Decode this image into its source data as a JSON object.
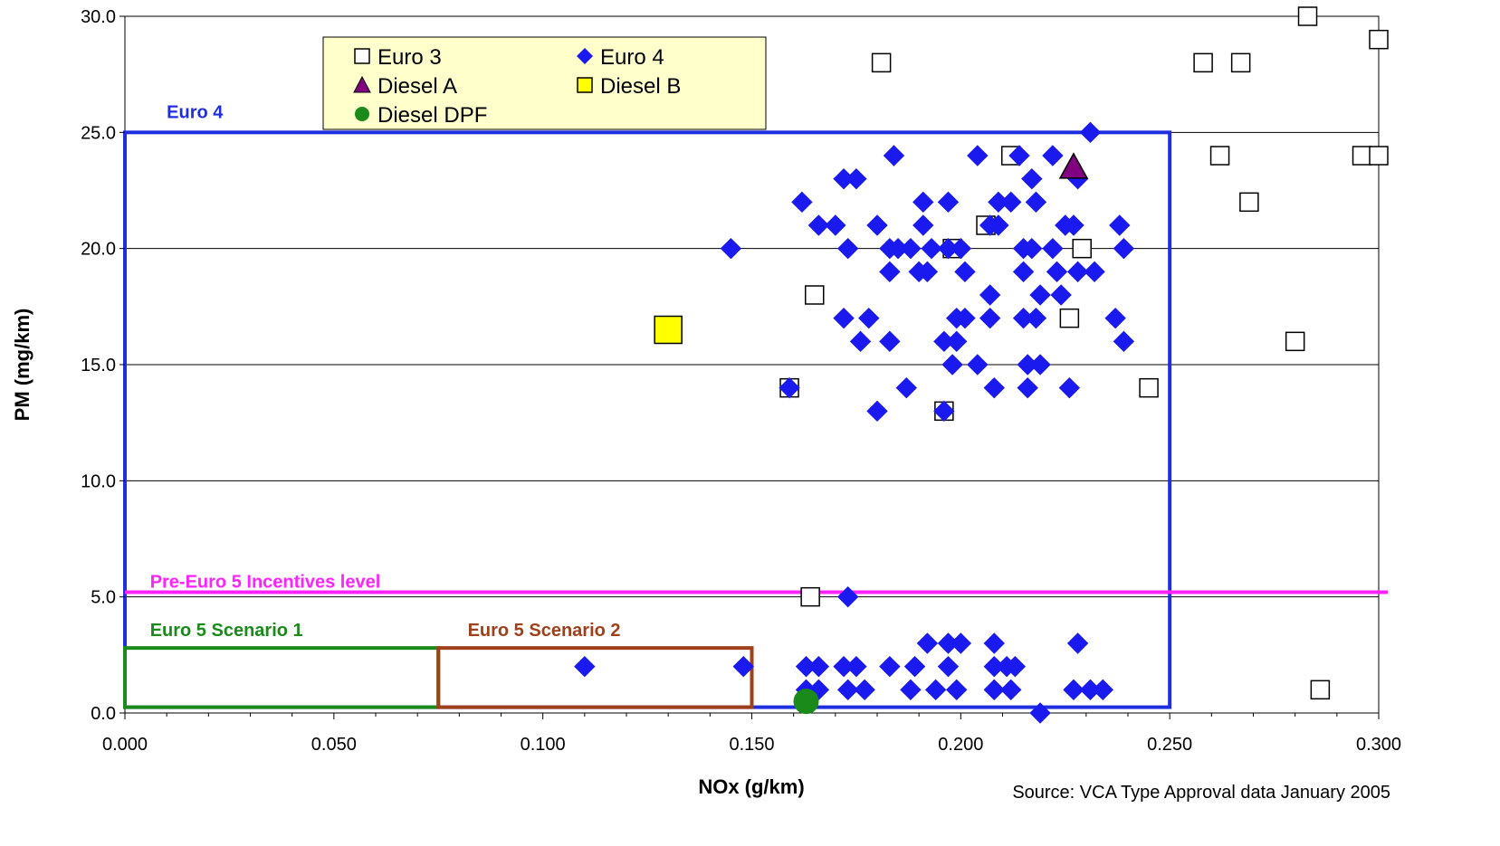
{
  "chart_data": {
    "type": "scatter",
    "xlabel": "NOx (g/km)",
    "ylabel": "PM (mg/km)",
    "xlim": [
      0,
      0.3
    ],
    "ylim": [
      0,
      30
    ],
    "x_ticks": [
      "0.000",
      "0.050",
      "0.100",
      "0.150",
      "0.200",
      "0.250",
      "0.300"
    ],
    "y_ticks": [
      "0.0",
      "5.0",
      "10.0",
      "15.0",
      "20.0",
      "25.0",
      "30.0"
    ],
    "grid": "horizontal",
    "legend_position": "top-center",
    "source": "Source: VCA Type Approval data January 2005",
    "regions": [
      {
        "name": "Euro 4",
        "x": [
          0,
          0.25
        ],
        "y": [
          0.25,
          25
        ],
        "color": "#1f2fe0"
      },
      {
        "name": "Euro 5 Scenario 1",
        "x": [
          0,
          0.075
        ],
        "y": [
          0.25,
          2.8
        ],
        "color": "#1a8a1a"
      },
      {
        "name": "Euro 5 Scenario 2",
        "x": [
          0.075,
          0.15
        ],
        "y": [
          0.25,
          2.8
        ],
        "color": "#a0401a"
      }
    ],
    "reference_lines": [
      {
        "name": "Pre-Euro 5 Incentives level",
        "y": 5.2,
        "color": "#ff22ff"
      }
    ],
    "series": [
      {
        "name": "Euro 3",
        "marker": "square-open",
        "color": "#000000",
        "points": [
          [
            0.283,
            30
          ],
          [
            0.3,
            29
          ],
          [
            0.181,
            28
          ],
          [
            0.258,
            28
          ],
          [
            0.267,
            28
          ],
          [
            0.212,
            24
          ],
          [
            0.262,
            24
          ],
          [
            0.296,
            24
          ],
          [
            0.3,
            24
          ],
          [
            0.206,
            21
          ],
          [
            0.269,
            22
          ],
          [
            0.198,
            20
          ],
          [
            0.229,
            20
          ],
          [
            0.165,
            18
          ],
          [
            0.226,
            17
          ],
          [
            0.28,
            16
          ],
          [
            0.159,
            14
          ],
          [
            0.245,
            14
          ],
          [
            0.196,
            13
          ],
          [
            0.164,
            5
          ],
          [
            0.286,
            1
          ]
        ]
      },
      {
        "name": "Euro 4",
        "marker": "diamond",
        "color": "#1a1aee",
        "points": [
          [
            0.231,
            25
          ],
          [
            0.184,
            24
          ],
          [
            0.204,
            24
          ],
          [
            0.214,
            24
          ],
          [
            0.222,
            24
          ],
          [
            0.228,
            23
          ],
          [
            0.172,
            23
          ],
          [
            0.175,
            23
          ],
          [
            0.217,
            23
          ],
          [
            0.162,
            22
          ],
          [
            0.191,
            22
          ],
          [
            0.197,
            22
          ],
          [
            0.209,
            22
          ],
          [
            0.212,
            22
          ],
          [
            0.218,
            22
          ],
          [
            0.166,
            21
          ],
          [
            0.17,
            21
          ],
          [
            0.18,
            21
          ],
          [
            0.191,
            21
          ],
          [
            0.207,
            21
          ],
          [
            0.209,
            21
          ],
          [
            0.225,
            21
          ],
          [
            0.227,
            21
          ],
          [
            0.238,
            21
          ],
          [
            0.145,
            20
          ],
          [
            0.173,
            20
          ],
          [
            0.183,
            20
          ],
          [
            0.185,
            20
          ],
          [
            0.188,
            20
          ],
          [
            0.193,
            20
          ],
          [
            0.197,
            20
          ],
          [
            0.2,
            20
          ],
          [
            0.215,
            20
          ],
          [
            0.217,
            20
          ],
          [
            0.222,
            20
          ],
          [
            0.239,
            20
          ],
          [
            0.183,
            19
          ],
          [
            0.19,
            19
          ],
          [
            0.192,
            19
          ],
          [
            0.201,
            19
          ],
          [
            0.215,
            19
          ],
          [
            0.223,
            19
          ],
          [
            0.228,
            19
          ],
          [
            0.232,
            19
          ],
          [
            0.207,
            18
          ],
          [
            0.219,
            18
          ],
          [
            0.224,
            18
          ],
          [
            0.172,
            17
          ],
          [
            0.178,
            17
          ],
          [
            0.199,
            17
          ],
          [
            0.201,
            17
          ],
          [
            0.207,
            17
          ],
          [
            0.215,
            17
          ],
          [
            0.218,
            17
          ],
          [
            0.237,
            17
          ],
          [
            0.176,
            16
          ],
          [
            0.183,
            16
          ],
          [
            0.196,
            16
          ],
          [
            0.199,
            16
          ],
          [
            0.239,
            16
          ],
          [
            0.198,
            15
          ],
          [
            0.204,
            15
          ],
          [
            0.216,
            15
          ],
          [
            0.219,
            15
          ],
          [
            0.159,
            14
          ],
          [
            0.187,
            14
          ],
          [
            0.208,
            14
          ],
          [
            0.216,
            14
          ],
          [
            0.226,
            14
          ],
          [
            0.18,
            13
          ],
          [
            0.196,
            13
          ],
          [
            0.173,
            5
          ],
          [
            0.192,
            3
          ],
          [
            0.197,
            3
          ],
          [
            0.2,
            3
          ],
          [
            0.208,
            3
          ],
          [
            0.228,
            3
          ],
          [
            0.11,
            2
          ],
          [
            0.148,
            2
          ],
          [
            0.163,
            2
          ],
          [
            0.166,
            2
          ],
          [
            0.172,
            2
          ],
          [
            0.175,
            2
          ],
          [
            0.183,
            2
          ],
          [
            0.189,
            2
          ],
          [
            0.197,
            2
          ],
          [
            0.208,
            2
          ],
          [
            0.211,
            2
          ],
          [
            0.213,
            2
          ],
          [
            0.163,
            1
          ],
          [
            0.166,
            1
          ],
          [
            0.173,
            1
          ],
          [
            0.177,
            1
          ],
          [
            0.188,
            1
          ],
          [
            0.194,
            1
          ],
          [
            0.199,
            1
          ],
          [
            0.208,
            1
          ],
          [
            0.212,
            1
          ],
          [
            0.227,
            1
          ],
          [
            0.231,
            1
          ],
          [
            0.234,
            1
          ],
          [
            0.219,
            0
          ]
        ]
      },
      {
        "name": "Diesel A",
        "marker": "triangle",
        "color": "#800080",
        "points": [
          [
            0.227,
            23.5
          ]
        ]
      },
      {
        "name": "Diesel B",
        "marker": "square-filled",
        "color": "#ffff00",
        "points": [
          [
            0.13,
            16.5
          ]
        ]
      },
      {
        "name": "Diesel DPF",
        "marker": "circle",
        "color": "#1a8a1a",
        "points": [
          [
            0.163,
            0.5
          ]
        ]
      }
    ]
  }
}
